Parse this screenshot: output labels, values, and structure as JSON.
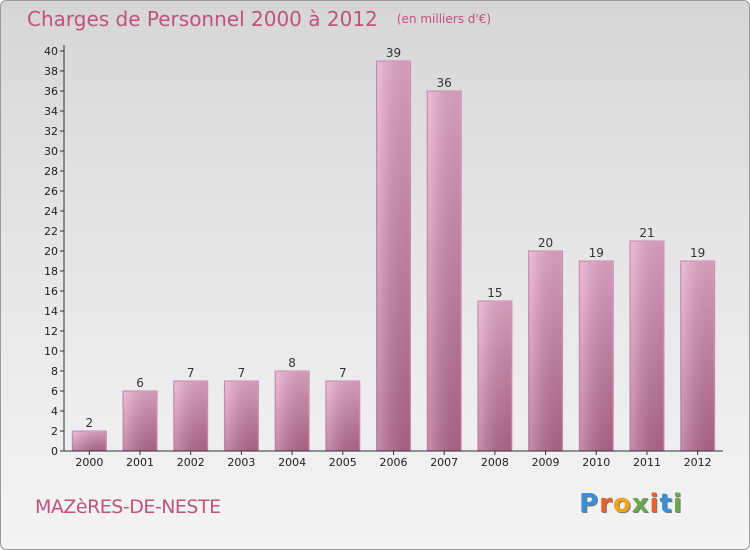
{
  "header": {
    "title": "Charges de Personnel 2000 à 2012",
    "subtitle": "(en milliers d'€)"
  },
  "footer": {
    "place": "MAZèRES-DE-NESTE",
    "brand": "Proxiti"
  },
  "colors": {
    "bar_top": "#e6a8cc",
    "bar_bottom": "#b3678f",
    "title": "#c0527e",
    "axis": "#333333"
  },
  "chart_data": {
    "type": "bar",
    "title": "Charges de Personnel 2000 à 2012",
    "subtitle": "(en milliers d'€)",
    "categories": [
      "2000",
      "2001",
      "2002",
      "2003",
      "2004",
      "2005",
      "2006",
      "2007",
      "2008",
      "2009",
      "2010",
      "2011",
      "2012"
    ],
    "values": [
      2,
      6,
      7,
      7,
      8,
      7,
      39,
      36,
      15,
      20,
      19,
      21,
      19
    ],
    "ylim": [
      0,
      40
    ],
    "ytick_step": 2,
    "grid": false,
    "legend": "none"
  }
}
